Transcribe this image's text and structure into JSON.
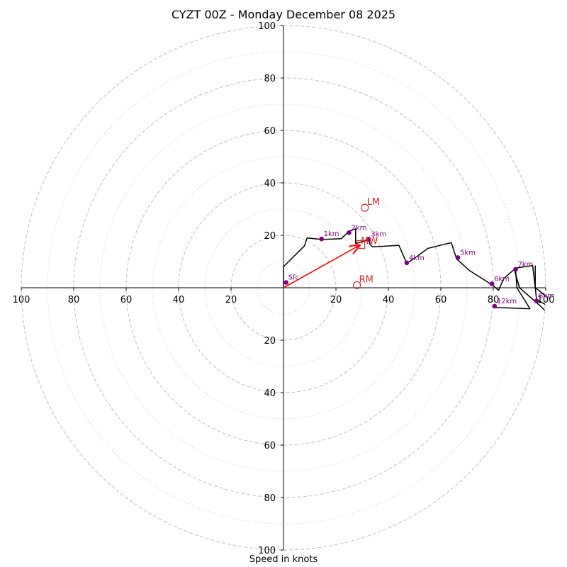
{
  "chart_data": {
    "type": "hodograph",
    "title": "CYZT 00Z - Monday December 08 2025",
    "xlabel": "Speed in knots",
    "max_speed": 100,
    "ring_major": [
      20,
      40,
      60,
      80,
      100
    ],
    "ring_minor": [
      10,
      30,
      50,
      70,
      90
    ],
    "x_ticks": [
      {
        "value": -100,
        "label": "100"
      },
      {
        "value": -80,
        "label": "80"
      },
      {
        "value": -60,
        "label": "60"
      },
      {
        "value": -40,
        "label": "40"
      },
      {
        "value": -20,
        "label": "20"
      },
      {
        "value": 20,
        "label": "20"
      },
      {
        "value": 40,
        "label": "40"
      },
      {
        "value": 60,
        "label": "60"
      },
      {
        "value": 80,
        "label": "80"
      },
      {
        "value": 100,
        "label": "100"
      }
    ],
    "y_ticks": [
      {
        "value": 100,
        "label": "100"
      },
      {
        "value": 80,
        "label": "80"
      },
      {
        "value": 60,
        "label": "60"
      },
      {
        "value": 40,
        "label": "40"
      },
      {
        "value": 20,
        "label": "20"
      },
      {
        "value": -20,
        "label": "20"
      },
      {
        "value": -40,
        "label": "40"
      },
      {
        "value": -60,
        "label": "60"
      },
      {
        "value": -80,
        "label": "80"
      },
      {
        "value": -100,
        "label": "100"
      }
    ],
    "hodograph_line": [
      [
        0,
        0.5
      ],
      [
        0,
        8
      ],
      [
        8,
        16
      ],
      [
        9,
        19
      ],
      [
        14,
        18.5
      ],
      [
        16,
        18.5
      ],
      [
        19,
        18.6
      ],
      [
        22,
        18.7
      ],
      [
        25,
        21.5
      ],
      [
        27.5,
        22.5
      ],
      [
        27.5,
        16.8
      ],
      [
        30,
        17.6
      ],
      [
        32.5,
        18.2
      ],
      [
        33,
        16.5
      ],
      [
        34,
        15.6
      ],
      [
        38,
        15.8
      ],
      [
        44,
        16.2
      ],
      [
        47,
        9.3
      ],
      [
        51,
        12
      ],
      [
        55,
        15
      ],
      [
        59,
        16
      ],
      [
        64,
        17.2
      ],
      [
        66,
        11
      ],
      [
        71,
        6.5
      ],
      [
        80,
        0.8
      ],
      [
        82,
        -1
      ],
      [
        84,
        3.5
      ],
      [
        88.5,
        7.5
      ],
      [
        95,
        8.5
      ],
      [
        96,
        0
      ],
      [
        98,
        -1.5
      ],
      [
        101,
        -4
      ]
    ],
    "upper_branches": [
      [
        [
          96,
          8.5
        ],
        [
          96,
          0
        ],
        [
          96.5,
          -4.5
        ],
        [
          101,
          -7
        ]
      ],
      [
        [
          88,
          7
        ],
        [
          90,
          0
        ],
        [
          98,
          -7
        ],
        [
          101,
          -10
        ]
      ],
      [
        [
          80.5,
          -7.5
        ],
        [
          94,
          -8
        ],
        [
          89,
          0
        ],
        [
          88.5,
          7
        ]
      ]
    ],
    "height_points": [
      {
        "label": "Sfc",
        "u": 1,
        "v": 2
      },
      {
        "label": "1km",
        "u": 14.5,
        "v": 18.6
      },
      {
        "label": "2km",
        "u": 25,
        "v": 21
      },
      {
        "label": "3km",
        "u": 32.5,
        "v": 18.5
      },
      {
        "label": "4km",
        "u": 47,
        "v": 9.5
      },
      {
        "label": "5km",
        "u": 66.5,
        "v": 11.5
      },
      {
        "label": "6km",
        "u": 79.5,
        "v": 1.5
      },
      {
        "label": "7km",
        "u": 88.5,
        "v": 7
      },
      {
        "label": "8km",
        "u": 96.5,
        "v": -5
      },
      {
        "label": "12km",
        "u": 80.5,
        "v": -7
      }
    ],
    "storm_motion": {
      "mean_wind": {
        "label": "MW",
        "u": 29.5,
        "v": 16.5
      },
      "right_mover": {
        "label": "RM",
        "u": 28,
        "v": 1
      },
      "left_mover": {
        "label": "LM",
        "u": 31,
        "v": 30.5
      }
    },
    "colors": {
      "hodograph": "#000000",
      "height_marker": "#800080",
      "storm": "#d62728",
      "arrow": "#ff0000",
      "ring": "#bfbfbf"
    }
  }
}
